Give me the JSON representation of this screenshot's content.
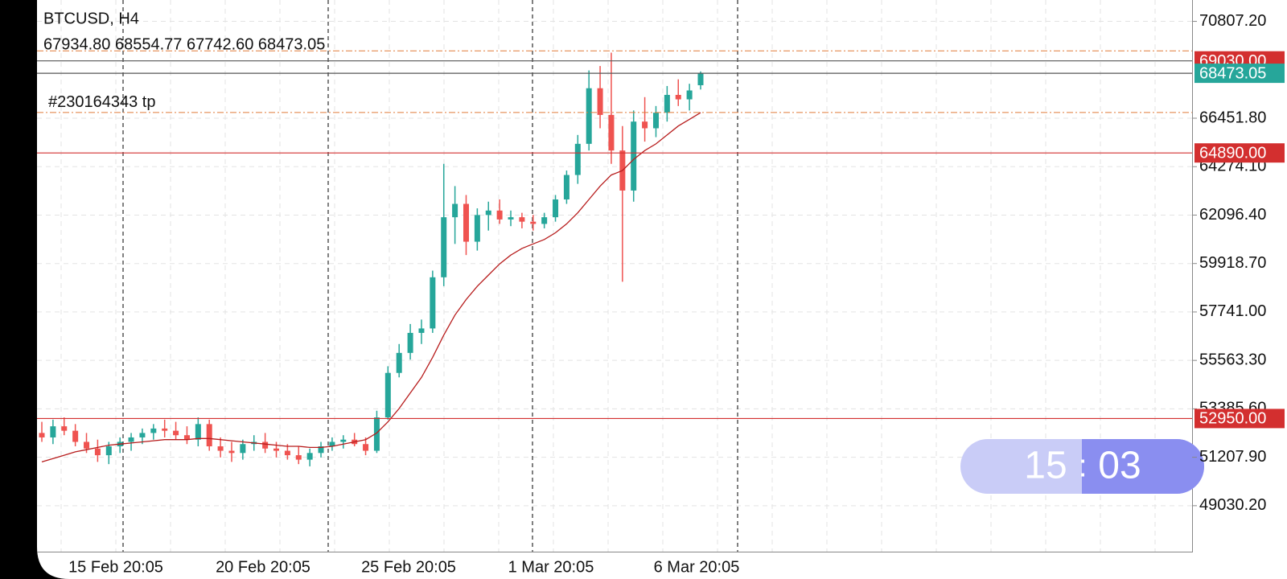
{
  "chart_data": {
    "type": "candlestick",
    "symbol": "BTCUSD, H4",
    "ohlc_text": "67934.80 68554.77 67742.60 68473.05",
    "ylim": [
      46964,
      71767
    ],
    "yticks": [
      {
        "value": 70807.2,
        "label": "70807.20"
      },
      {
        "value": 66451.8,
        "label": "66451.80"
      },
      {
        "value": 64274.1,
        "label": "64274.10"
      },
      {
        "value": 62096.4,
        "label": "62096.40"
      },
      {
        "value": 59918.7,
        "label": "59918.70"
      },
      {
        "value": 57741,
        "label": "57741.00"
      },
      {
        "value": 55563.3,
        "label": "55563.30"
      },
      {
        "value": 53385.6,
        "label": "53385.60"
      },
      {
        "value": 51207.9,
        "label": "51207.90"
      },
      {
        "value": 49030.2,
        "label": "49030.20"
      }
    ],
    "x_labels": [
      "15 Feb 20:05",
      "20 Feb 20:05",
      "25 Feb 20:05",
      "1 Mar 20:05",
      "6 Mar 20:05"
    ],
    "grid": true,
    "up_color": "#26a69a",
    "down_color": "#ef5350",
    "ohlc": [
      [
        52300,
        52800,
        51900,
        52100
      ],
      [
        52100,
        52900,
        51800,
        52600
      ],
      [
        52600,
        53000,
        52200,
        52400
      ],
      [
        52400,
        52700,
        51700,
        51900
      ],
      [
        51900,
        52300,
        51400,
        51600
      ],
      [
        51600,
        52000,
        51000,
        51300
      ],
      [
        51300,
        51900,
        50900,
        51700
      ],
      [
        51700,
        52100,
        51400,
        51900
      ],
      [
        51900,
        52300,
        51500,
        52100
      ],
      [
        52100,
        52500,
        51800,
        52300
      ],
      [
        52300,
        52700,
        52000,
        52500
      ],
      [
        52500,
        52900,
        52100,
        52400
      ],
      [
        52400,
        52800,
        52000,
        52200
      ],
      [
        52200,
        52600,
        51800,
        52000
      ],
      [
        52000,
        53000,
        51700,
        52700
      ],
      [
        52700,
        52900,
        51500,
        51700
      ],
      [
        51700,
        52100,
        51200,
        51500
      ],
      [
        51500,
        51900,
        51000,
        51400
      ],
      [
        51400,
        52000,
        51100,
        51800
      ],
      [
        51800,
        52200,
        51500,
        51900
      ],
      [
        51900,
        52300,
        51400,
        51600
      ],
      [
        51600,
        51900,
        51200,
        51500
      ],
      [
        51500,
        51800,
        51100,
        51300
      ],
      [
        51300,
        51700,
        50900,
        51100
      ],
      [
        51100,
        51600,
        50800,
        51400
      ],
      [
        51400,
        51900,
        51200,
        51700
      ],
      [
        51700,
        52100,
        51500,
        51900
      ],
      [
        51900,
        52200,
        51600,
        52000
      ],
      [
        52000,
        52300,
        51700,
        51800
      ],
      [
        51800,
        52100,
        51300,
        51500
      ],
      [
        51500,
        53300,
        51400,
        53000
      ],
      [
        53000,
        55300,
        52900,
        55000
      ],
      [
        55000,
        56300,
        54800,
        55900
      ],
      [
        55900,
        57200,
        55600,
        56800
      ],
      [
        56800,
        57400,
        56300,
        57000
      ],
      [
        57000,
        59600,
        56800,
        59300
      ],
      [
        59300,
        64400,
        58900,
        62000
      ],
      [
        62000,
        63400,
        60800,
        62600
      ],
      [
        62600,
        63000,
        60300,
        60900
      ],
      [
        60900,
        62400,
        60500,
        62100
      ],
      [
        62100,
        62700,
        61400,
        62300
      ],
      [
        62300,
        62800,
        61700,
        61900
      ],
      [
        61900,
        62300,
        61600,
        62000
      ],
      [
        62000,
        62200,
        61500,
        61800
      ],
      [
        61800,
        62100,
        61400,
        61700
      ],
      [
        61700,
        62200,
        61500,
        62000
      ],
      [
        62000,
        63000,
        61800,
        62800
      ],
      [
        62800,
        64100,
        62600,
        63900
      ],
      [
        63900,
        65700,
        63500,
        65300
      ],
      [
        65300,
        68600,
        65000,
        67800
      ],
      [
        67800,
        68800,
        66000,
        66600
      ],
      [
        66600,
        69400,
        64400,
        65000
      ],
      [
        65000,
        66100,
        59100,
        63200
      ],
      [
        63200,
        66800,
        62700,
        66300
      ],
      [
        66300,
        67400,
        65400,
        66000
      ],
      [
        66000,
        67000,
        65600,
        66700
      ],
      [
        66700,
        67900,
        66300,
        67500
      ],
      [
        67500,
        68200,
        67000,
        67300
      ],
      [
        67300,
        68000,
        66800,
        67700
      ],
      [
        67934.8,
        68554.77,
        67742.6,
        68473.05
      ]
    ],
    "ma": {
      "color": "#b71c1c",
      "values": [
        51000,
        51150,
        51300,
        51450,
        51550,
        51650,
        51750,
        51800,
        51850,
        51900,
        51950,
        52000,
        52000,
        52000,
        52050,
        52050,
        52000,
        51950,
        51900,
        51850,
        51800,
        51750,
        51700,
        51700,
        51650,
        51650,
        51700,
        51800,
        51900,
        52000,
        52300,
        52800,
        53400,
        54100,
        54800,
        55700,
        56700,
        57600,
        58300,
        58900,
        59400,
        59900,
        60300,
        60600,
        60800,
        61000,
        61300,
        61700,
        62200,
        62800,
        63400,
        63900,
        64100,
        64600,
        65000,
        65300,
        65700,
        66100,
        66400,
        66700
      ]
    },
    "levels": [
      {
        "value": 69030,
        "label": "69030.00",
        "color": "#d32f2f",
        "line_color": "#555555"
      },
      {
        "value": 68473.05,
        "label": "68473.05",
        "color": "#26a69a",
        "line_color": "#555555"
      },
      {
        "value": 64890,
        "label": "64890.00",
        "color": "#d32f2f",
        "line_color": "#d32f2f"
      },
      {
        "value": 52950,
        "label": "52950.00",
        "color": "#d32f2f",
        "line_color": "#d32f2f"
      }
    ],
    "order_lines": [
      {
        "value": 69478,
        "color": "#e07b39"
      },
      {
        "value": 66710,
        "color": "#e07b39",
        "label": "#230164343 tp"
      }
    ]
  },
  "clock": {
    "hours": "15",
    "separator": ":",
    "minutes": "03"
  }
}
